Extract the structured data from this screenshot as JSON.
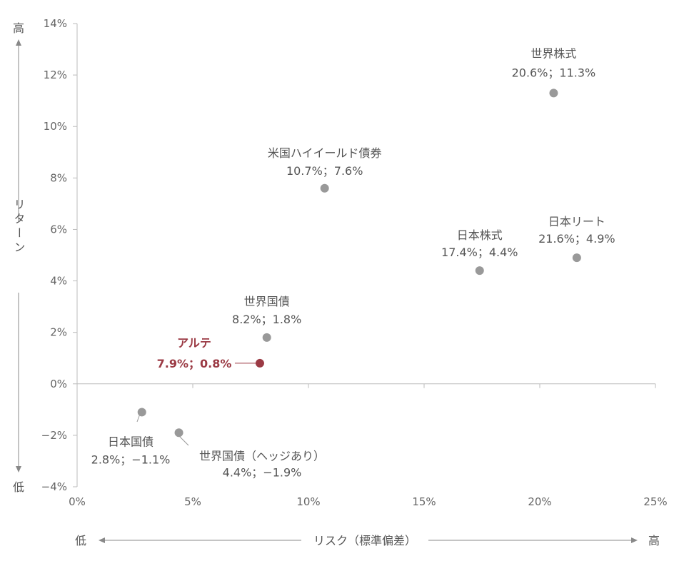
{
  "chart_data": {
    "type": "scatter",
    "xlabel": "リスク（標準偏差）",
    "ylabel": "リターン",
    "xlim": [
      0,
      25
    ],
    "ylim": [
      -4,
      14
    ],
    "x_ticks": [
      0,
      5,
      10,
      15,
      20,
      25
    ],
    "x_tick_labels": [
      "0%",
      "5%",
      "10%",
      "15%",
      "20%",
      "25%"
    ],
    "y_ticks": [
      14,
      12,
      10,
      8,
      6,
      4,
      2,
      0,
      -2,
      -4
    ],
    "y_tick_labels": [
      "14%",
      "12%",
      "10%",
      "8%",
      "6%",
      "4%",
      "2%",
      "0%",
      "−2%",
      "−4%"
    ],
    "x_axis_low": "低",
    "x_axis_high": "高",
    "y_axis_low": "低",
    "y_axis_high": "高",
    "grid": false,
    "highlight_color": "#9b3a44",
    "point_color": "#999999",
    "points": [
      {
        "name": "世界株式",
        "value_label": "20.6%；11.3%",
        "x": 20.6,
        "y": 11.3,
        "highlight": false
      },
      {
        "name": "米国ハイイールド債券",
        "value_label": "10.7%；7.6%",
        "x": 10.7,
        "y": 7.6,
        "highlight": false
      },
      {
        "name": "日本株式",
        "value_label": "17.4%；4.4%",
        "x": 17.4,
        "y": 4.4,
        "highlight": false
      },
      {
        "name": "日本リート",
        "value_label": "21.6%；4.9%",
        "x": 21.6,
        "y": 4.9,
        "highlight": false
      },
      {
        "name": "世界国債",
        "value_label": "8.2%；1.8%",
        "x": 8.2,
        "y": 1.8,
        "highlight": false
      },
      {
        "name": "アルテ",
        "value_label": "7.9%；0.8%",
        "x": 7.9,
        "y": 0.8,
        "highlight": true
      },
      {
        "name": "日本国債",
        "value_label": "2.8%；−1.1%",
        "x": 2.8,
        "y": -1.1,
        "highlight": false
      },
      {
        "name": "世界国債（ヘッジあり）",
        "value_label": "4.4%；−1.9%",
        "x": 4.4,
        "y": -1.9,
        "highlight": false
      }
    ]
  }
}
